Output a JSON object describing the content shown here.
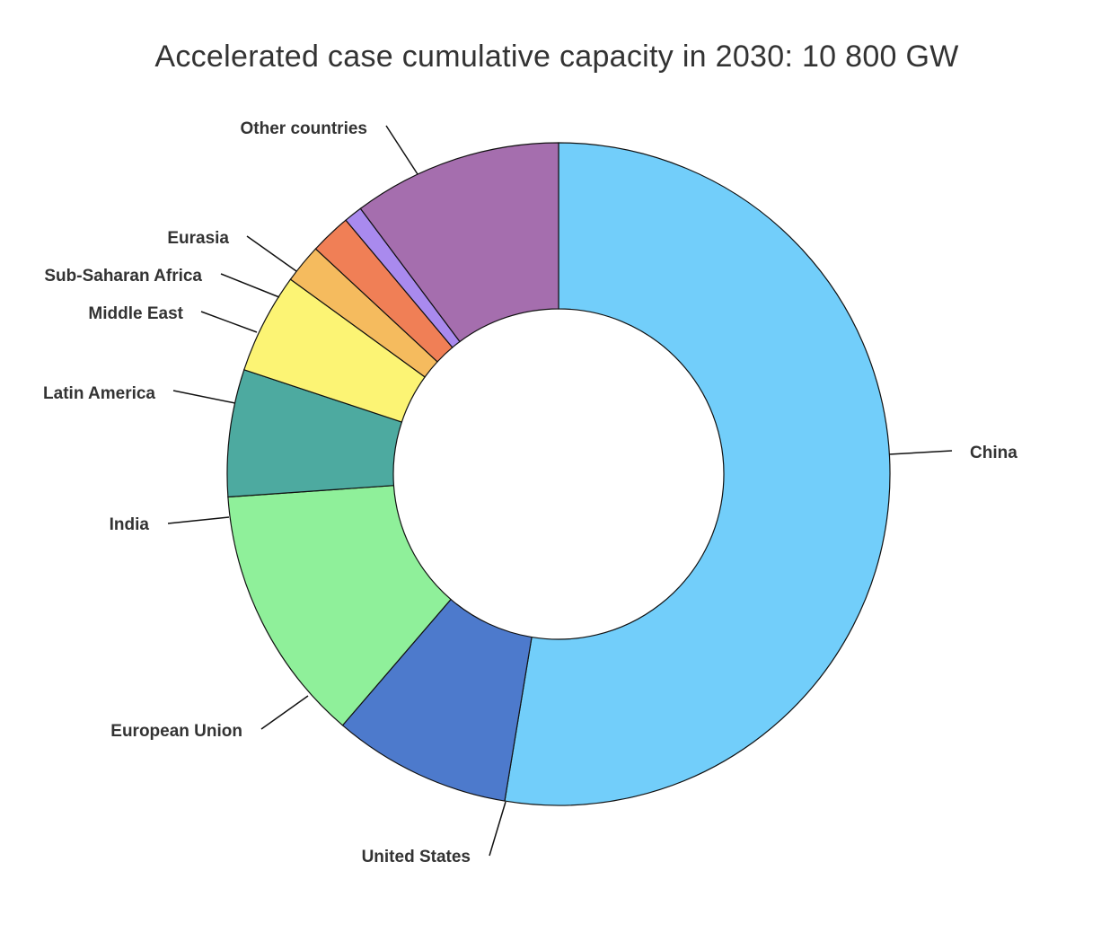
{
  "chart_data": {
    "type": "pie",
    "title": "Accelerated case cumulative capacity in 2030: 10 800 GW",
    "donut": true,
    "slices": [
      {
        "label": "China",
        "value": 52.6,
        "color": "#72CEFA"
      },
      {
        "label": "United States",
        "value": 8.7,
        "color": "#4D7ACC"
      },
      {
        "label": "European Union",
        "value": 12.6,
        "color": "#8FF09A"
      },
      {
        "label": "India",
        "value": 6.2,
        "color": "#4DAAA0"
      },
      {
        "label": "Latin America",
        "value": 4.9,
        "color": "#FCF474"
      },
      {
        "label": "Middle East",
        "value": 1.9,
        "color": "#F5BB5E"
      },
      {
        "label": "Sub-Saharan Africa",
        "value": 2.0,
        "color": "#F07F56"
      },
      {
        "label": "Eurasia",
        "value": 0.9,
        "color": "#A98AEE"
      },
      {
        "label": "Other countries",
        "value": 10.2,
        "color": "#A56EAE"
      }
    ]
  }
}
